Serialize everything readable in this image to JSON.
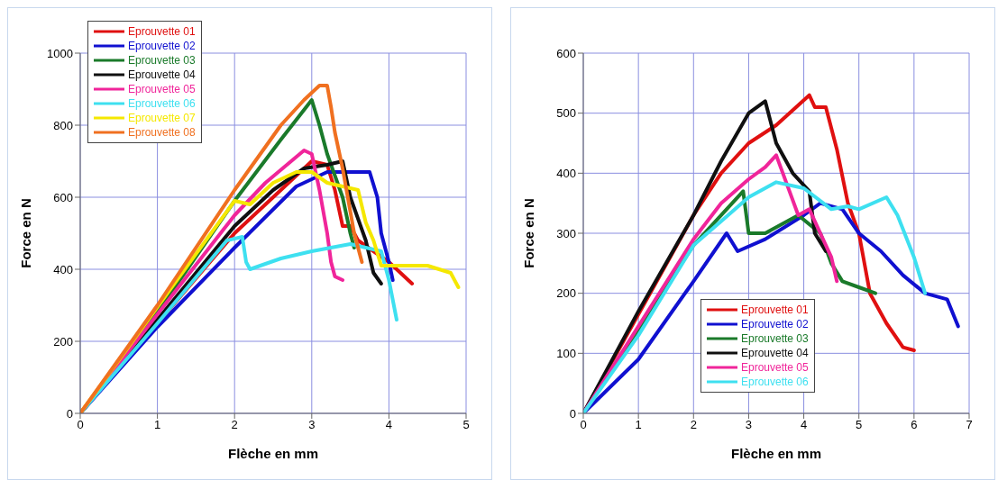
{
  "chart_data": [
    {
      "type": "line",
      "xlabel": "Flèche en mm",
      "ylabel": "Force en N",
      "xlim": [
        0,
        5
      ],
      "xticks": [
        0,
        1,
        2,
        3,
        4,
        5
      ],
      "ylim": [
        0,
        1000
      ],
      "yticks": [
        0,
        200,
        400,
        600,
        800,
        1000
      ],
      "grid": true,
      "legend": "top left",
      "series": [
        {
          "name": "Eprouvette 01",
          "color": "#e01010",
          "x": [
            0,
            2,
            2.5,
            2.9,
            3.0,
            3.2,
            3.3,
            3.4,
            3.5,
            3.6,
            3.8,
            4.0,
            4.2,
            4.3
          ],
          "values": [
            0,
            500,
            600,
            680,
            700,
            690,
            620,
            520,
            520,
            480,
            450,
            420,
            380,
            360
          ]
        },
        {
          "name": "Eprouvette 02",
          "color": "#1010d0",
          "x": [
            0,
            1,
            2,
            2.8,
            3.0,
            3.2,
            3.6,
            3.75,
            3.85,
            3.9,
            4.0,
            4.05
          ],
          "values": [
            0,
            240,
            460,
            630,
            650,
            670,
            670,
            670,
            600,
            500,
            420,
            370
          ]
        },
        {
          "name": "Eprouvette 03",
          "color": "#1a7a2a",
          "x": [
            0,
            1,
            2,
            2.6,
            3.0,
            3.1,
            3.2,
            3.4,
            3.5,
            3.55
          ],
          "values": [
            0,
            280,
            590,
            760,
            870,
            800,
            720,
            600,
            500,
            460
          ]
        },
        {
          "name": "Eprouvette 04",
          "color": "#101010",
          "x": [
            0,
            2,
            2.5,
            2.9,
            3.2,
            3.4,
            3.5,
            3.7,
            3.8,
            3.9
          ],
          "values": [
            0,
            520,
            620,
            680,
            690,
            700,
            600,
            480,
            390,
            360
          ]
        },
        {
          "name": "Eprouvette 05",
          "color": "#f0259a",
          "x": [
            0,
            2,
            2.4,
            2.9,
            3.0,
            3.1,
            3.2,
            3.25,
            3.3,
            3.4
          ],
          "values": [
            0,
            550,
            640,
            730,
            720,
            620,
            500,
            420,
            380,
            370
          ]
        },
        {
          "name": "Eprouvette 06",
          "color": "#3ee0f0",
          "x": [
            0,
            1,
            1.9,
            2.1,
            2.15,
            2.2,
            2.6,
            3.0,
            3.5,
            3.9,
            4.0,
            4.1
          ],
          "values": [
            0,
            250,
            480,
            490,
            420,
            400,
            430,
            450,
            470,
            450,
            370,
            260
          ]
        },
        {
          "name": "Eprouvette 07",
          "color": "#f5e800",
          "x": [
            0,
            2,
            2.2,
            2.5,
            2.8,
            3.0,
            3.2,
            3.6,
            3.7,
            3.8,
            3.9,
            4.5,
            4.8,
            4.9
          ],
          "values": [
            0,
            590,
            580,
            640,
            670,
            670,
            640,
            620,
            530,
            480,
            410,
            410,
            390,
            350
          ]
        },
        {
          "name": "Eprouvette 08",
          "color": "#f07020",
          "x": [
            0,
            1,
            2,
            2.6,
            2.9,
            3.1,
            3.2,
            3.25,
            3.3,
            3.4,
            3.55,
            3.65
          ],
          "values": [
            0,
            300,
            620,
            800,
            870,
            910,
            910,
            850,
            780,
            680,
            500,
            420
          ]
        }
      ]
    },
    {
      "type": "line",
      "xlabel": "Flèche en mm",
      "ylabel": "Force en N",
      "xlim": [
        0,
        7
      ],
      "xticks": [
        0,
        1,
        2,
        3,
        4,
        5,
        6,
        7
      ],
      "ylim": [
        0,
        600
      ],
      "yticks": [
        0,
        100,
        200,
        300,
        400,
        500,
        600
      ],
      "grid": true,
      "legend": "bottom",
      "series": [
        {
          "name": "Eprouvette 01",
          "color": "#e01010",
          "x": [
            0,
            2,
            2.5,
            3,
            3.5,
            4.1,
            4.2,
            4.4,
            4.6,
            4.8,
            5.0,
            5.2,
            5.5,
            5.8,
            6.0
          ],
          "values": [
            0,
            330,
            400,
            450,
            480,
            530,
            510,
            510,
            440,
            350,
            300,
            200,
            150,
            110,
            105
          ]
        },
        {
          "name": "Eprouvette 02",
          "color": "#1010d0",
          "x": [
            0,
            1,
            2,
            2.6,
            2.8,
            3.3,
            4,
            4.3,
            4.7,
            5,
            5.4,
            5.8,
            6.2,
            6.6,
            6.8
          ],
          "values": [
            0,
            90,
            220,
            300,
            270,
            290,
            330,
            350,
            340,
            300,
            270,
            230,
            200,
            190,
            145
          ]
        },
        {
          "name": "Eprouvette 03",
          "color": "#1a7a2a",
          "x": [
            0,
            2,
            2.9,
            3.0,
            3.3,
            3.9,
            4.3,
            4.5,
            4.7,
            5,
            5.3
          ],
          "values": [
            0,
            280,
            370,
            300,
            300,
            330,
            300,
            250,
            220,
            210,
            200
          ]
        },
        {
          "name": "Eprouvette 04",
          "color": "#101010",
          "x": [
            0,
            1,
            2,
            2.5,
            3,
            3.3,
            3.5,
            3.8,
            4.1,
            4.2,
            4.4
          ],
          "values": [
            0,
            170,
            330,
            420,
            500,
            520,
            450,
            400,
            370,
            300,
            270
          ]
        },
        {
          "name": "Eprouvette 05",
          "color": "#f0259a",
          "x": [
            0,
            2,
            2.5,
            3,
            3.3,
            3.5,
            3.7,
            3.9,
            4.1,
            4.3,
            4.5,
            4.6
          ],
          "values": [
            0,
            290,
            350,
            390,
            410,
            430,
            380,
            330,
            340,
            300,
            260,
            220
          ]
        },
        {
          "name": "Eprouvette 06",
          "color": "#3ee0f0",
          "x": [
            0,
            1,
            2,
            2.5,
            3,
            3.5,
            4,
            4.5,
            4.8,
            5,
            5.5,
            5.7,
            6,
            6.2
          ],
          "values": [
            0,
            130,
            280,
            320,
            360,
            385,
            375,
            340,
            345,
            340,
            360,
            330,
            260,
            200
          ]
        }
      ]
    }
  ]
}
